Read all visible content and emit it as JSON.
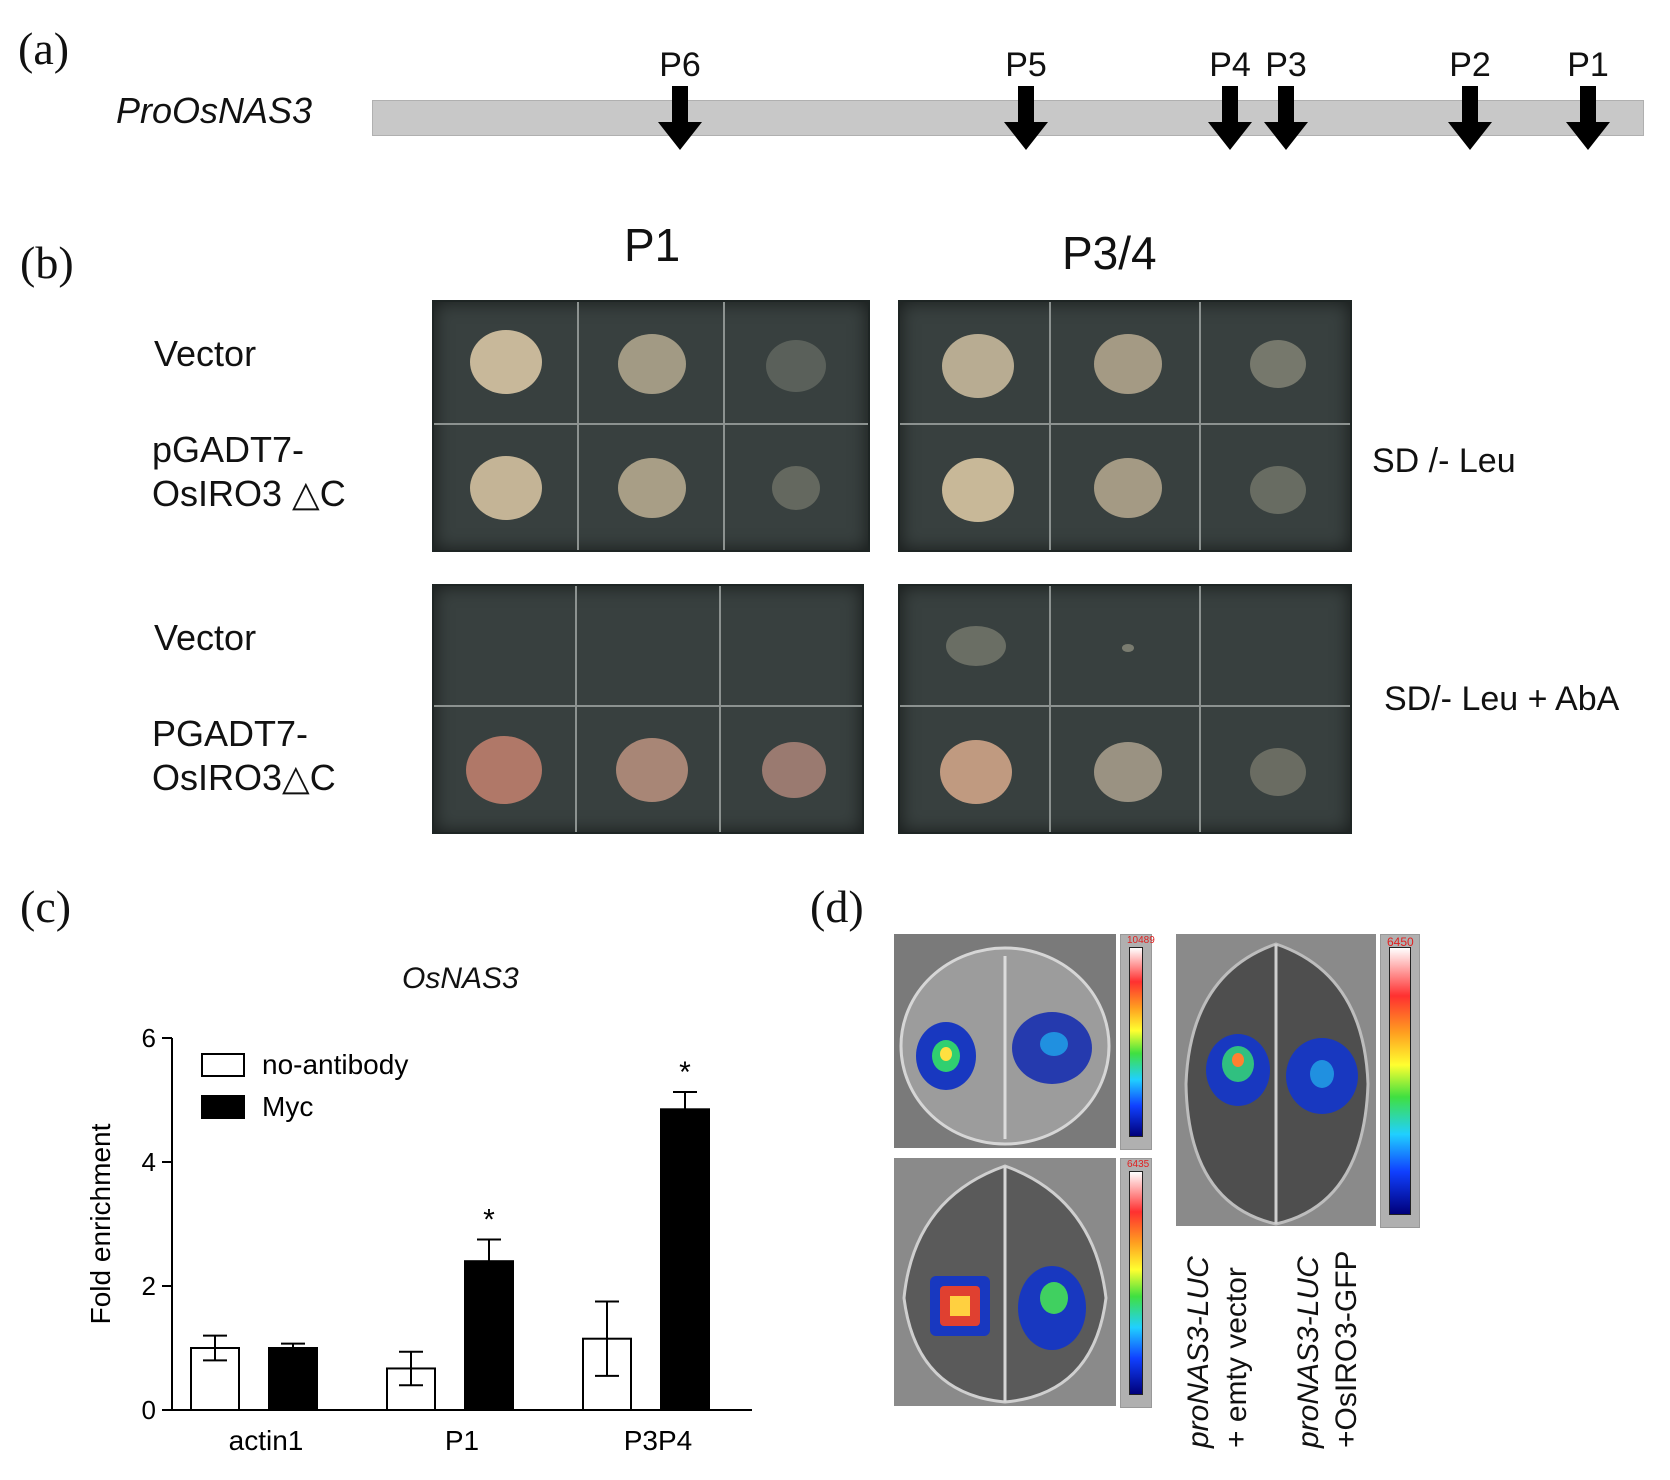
{
  "panels": {
    "a": "(a)",
    "b": "(b)",
    "c": "(c)",
    "d": "(d)"
  },
  "promoter": {
    "name": "ProOsNAS3",
    "markers": [
      "P6",
      "P5",
      "P4",
      "P3",
      "P2",
      "P1"
    ]
  },
  "yeast": {
    "col_headers": [
      "P1",
      "P3/4"
    ],
    "row_labels_top": {
      "r1": "Vector",
      "r2_line1": "pGADT7-",
      "r2_line2": "OsIRO3 △C"
    },
    "row_labels_bottom": {
      "r1": "Vector",
      "r2_line1": "PGADT7-",
      "r2_line2": "OsIRO3△C"
    },
    "conditions": [
      "SD /- Leu",
      "SD/- Leu + AbA"
    ]
  },
  "chart_data": {
    "type": "bar",
    "title": "OsNAS3",
    "ylabel": "Fold enrichment",
    "xlabel": "",
    "categories": [
      "actin1",
      "P1",
      "P3P4"
    ],
    "ylim": [
      0,
      6
    ],
    "yticks": [
      "0",
      "2",
      "4",
      "6"
    ],
    "series": [
      {
        "name": "no-antibody",
        "values": [
          1.0,
          0.67,
          1.15
        ],
        "errors": [
          0.2,
          0.27,
          0.6
        ],
        "color": "#ffffff"
      },
      {
        "name": "Myc",
        "values": [
          1.0,
          2.4,
          4.85
        ],
        "errors": [
          0.07,
          0.35,
          0.28
        ],
        "color": "#000000"
      }
    ],
    "annotations": [
      "*",
      "*"
    ],
    "legend": "top-left"
  },
  "luc": {
    "scale_values": [
      "10489",
      "6435",
      "6450"
    ],
    "labels": {
      "left_line1": "proNAS3-LUC",
      "left_line2": "+ emty vector",
      "right_line1": "proNAS3-LUC",
      "right_line2": "+OsIRO3-GFP"
    }
  }
}
